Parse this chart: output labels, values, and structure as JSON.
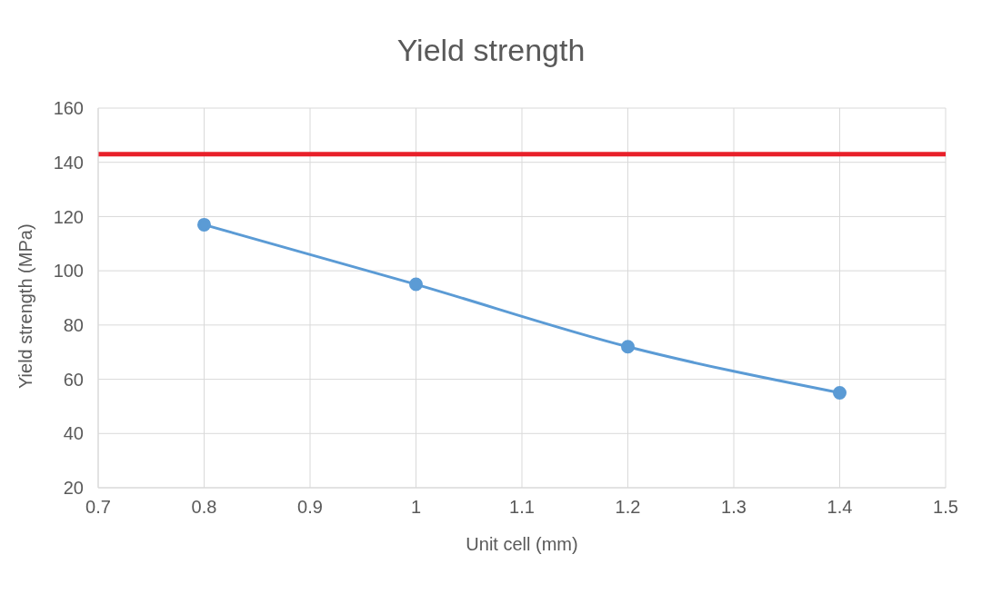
{
  "chart_data": {
    "type": "line",
    "title": "Yield strength",
    "xlabel": "Unit cell (mm)",
    "ylabel": "Yield strength (MPa)",
    "x": [
      0.8,
      1.0,
      1.2,
      1.4
    ],
    "series": [
      {
        "color": "#5b9bd5",
        "values": [
          117,
          95,
          72,
          55
        ]
      }
    ],
    "xlim": [
      0.7,
      1.5
    ],
    "xticks": [
      0.7,
      0.8,
      0.9,
      1,
      1.1,
      1.2,
      1.3,
      1.4,
      1.5
    ],
    "ylim": [
      20,
      160
    ],
    "yticks": [
      20,
      40,
      60,
      80,
      100,
      120,
      140,
      160
    ],
    "ref_lines": [
      {
        "axis": "y",
        "value": 143,
        "color": "#e8202a"
      }
    ],
    "grid": true,
    "marker": "circle"
  }
}
